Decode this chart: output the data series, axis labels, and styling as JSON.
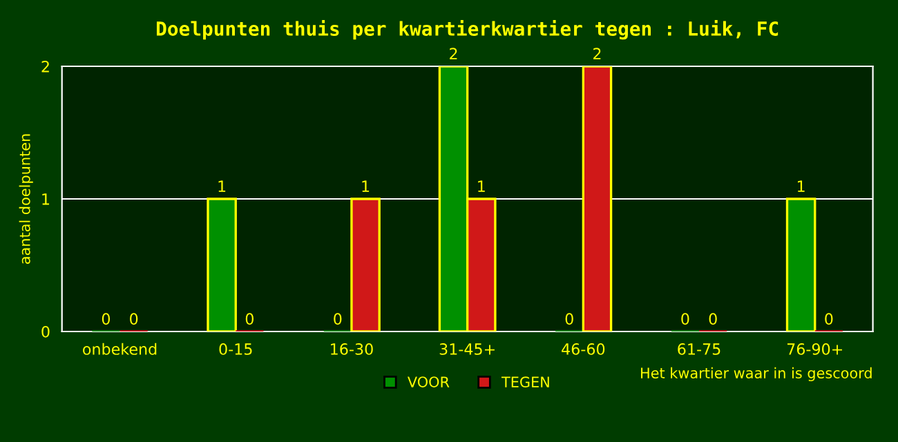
{
  "chart_data": {
    "type": "bar",
    "title": "Doelpunten thuis per kwartierkwartier tegen : Luik, FC",
    "categories": [
      "onbekend",
      "0-15",
      "16-30",
      "31-45+",
      "46-60",
      "61-75",
      "76-90+"
    ],
    "series": [
      {
        "name": "VOOR",
        "color": "#009000",
        "values": [
          0,
          1,
          0,
          2,
          0,
          0,
          1
        ]
      },
      {
        "name": "TEGEN",
        "color": "#d01818",
        "values": [
          0,
          0,
          1,
          1,
          2,
          0,
          0
        ]
      }
    ],
    "ylabel": "aantal doelpunten",
    "xlabel": "Het kwartier waar in is gescoord",
    "ylim": [
      0,
      2
    ],
    "yticks": [
      0,
      1,
      2
    ],
    "grid": "y",
    "legend": "bottom",
    "data_labels": true
  }
}
